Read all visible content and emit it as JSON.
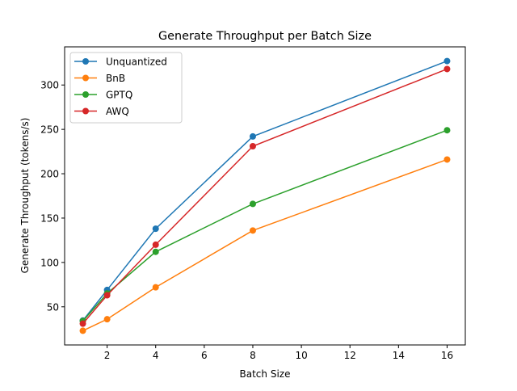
{
  "chart_data": {
    "type": "line",
    "title": "Generate Throughput per Batch Size",
    "xlabel": "Batch Size",
    "ylabel": "Generate Throughput (tokens/s)",
    "x": [
      1,
      2,
      4,
      8,
      16
    ],
    "xlim": [
      0.25,
      16.75
    ],
    "ylim": [
      7,
      343
    ],
    "xticks": [
      2,
      4,
      6,
      8,
      10,
      12,
      14,
      16
    ],
    "yticks": [
      50,
      100,
      150,
      200,
      250,
      300
    ],
    "grid": false,
    "legend": "top-left",
    "series": [
      {
        "name": "Unquantized",
        "color": "#1f77b4",
        "values": [
          34.5,
          69,
          138,
          242,
          327
        ]
      },
      {
        "name": "BnB",
        "color": "#ff7f0e",
        "values": [
          23,
          36,
          72,
          136,
          216
        ]
      },
      {
        "name": "GPTQ",
        "color": "#2ca02c",
        "values": [
          34,
          65,
          112,
          166,
          249
        ]
      },
      {
        "name": "AWQ",
        "color": "#d62728",
        "values": [
          31,
          63,
          120,
          231,
          318
        ]
      }
    ]
  }
}
